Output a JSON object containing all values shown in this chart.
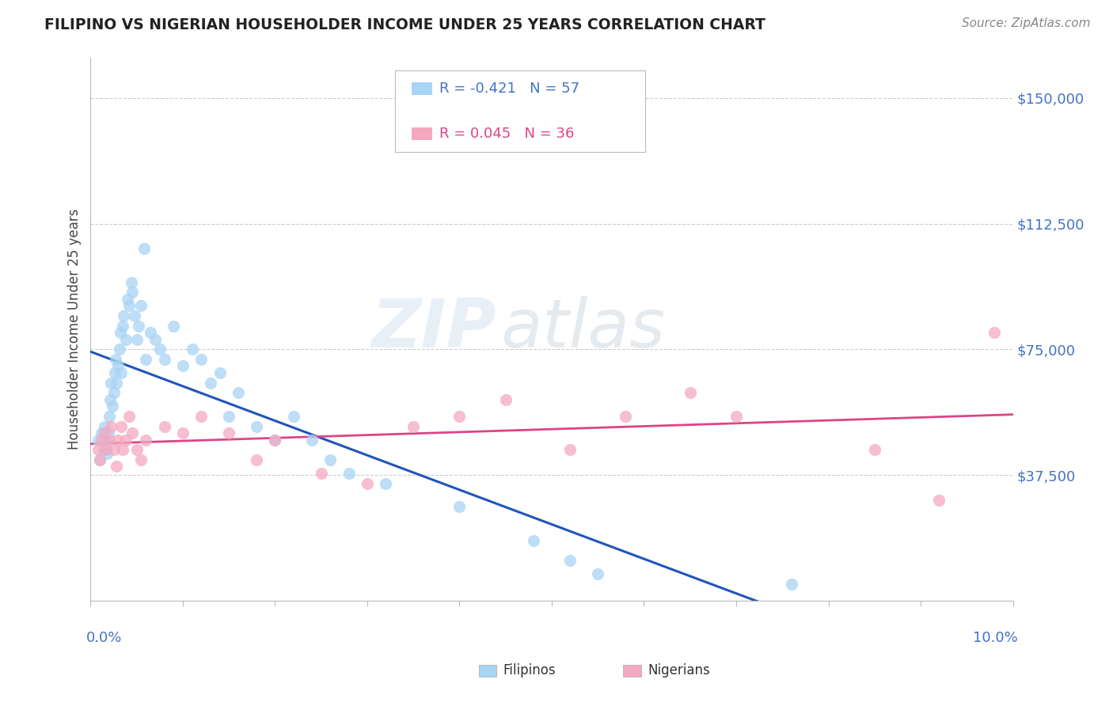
{
  "title": "FILIPINO VS NIGERIAN HOUSEHOLDER INCOME UNDER 25 YEARS CORRELATION CHART",
  "source": "Source: ZipAtlas.com",
  "ylabel": "Householder Income Under 25 years",
  "xlim": [
    0.0,
    10.0
  ],
  "ylim": [
    0,
    162000
  ],
  "yticks": [
    0,
    37500,
    75000,
    112500,
    150000
  ],
  "ytick_labels": [
    "",
    "$37,500",
    "$75,000",
    "$112,500",
    "$150,000"
  ],
  "xticks": [
    0.0,
    1.0,
    2.0,
    3.0,
    4.0,
    5.0,
    6.0,
    7.0,
    8.0,
    9.0,
    10.0
  ],
  "filipino_color": "#A8D4F5",
  "nigerian_color": "#F5A8C0",
  "filipino_line_color": "#2255BB",
  "nigerian_line_color": "#DD4488",
  "watermark_zip": "ZIP",
  "watermark_atlas": "atlas",
  "filipino_x": [
    0.08,
    0.1,
    0.12,
    0.14,
    0.15,
    0.17,
    0.18,
    0.19,
    0.2,
    0.21,
    0.22,
    0.24,
    0.25,
    0.26,
    0.27,
    0.28,
    0.3,
    0.31,
    0.32,
    0.33,
    0.35,
    0.36,
    0.38,
    0.4,
    0.42,
    0.44,
    0.45,
    0.48,
    0.5,
    0.52,
    0.55,
    0.58,
    0.6,
    0.65,
    0.7,
    0.75,
    0.8,
    0.9,
    1.0,
    1.1,
    1.2,
    1.3,
    1.4,
    1.5,
    1.6,
    1.8,
    2.0,
    2.2,
    2.4,
    2.6,
    2.8,
    3.2,
    4.0,
    4.8,
    5.2,
    5.5,
    7.6
  ],
  "filipino_y": [
    48000,
    42000,
    50000,
    45000,
    52000,
    48000,
    44000,
    50000,
    55000,
    60000,
    65000,
    58000,
    62000,
    68000,
    72000,
    65000,
    70000,
    75000,
    80000,
    68000,
    82000,
    85000,
    78000,
    90000,
    88000,
    95000,
    92000,
    85000,
    78000,
    82000,
    88000,
    105000,
    72000,
    80000,
    78000,
    75000,
    72000,
    82000,
    70000,
    75000,
    72000,
    65000,
    68000,
    55000,
    62000,
    52000,
    48000,
    55000,
    48000,
    42000,
    38000,
    35000,
    28000,
    18000,
    12000,
    8000,
    5000
  ],
  "nigerian_x": [
    0.08,
    0.1,
    0.12,
    0.15,
    0.17,
    0.2,
    0.22,
    0.25,
    0.28,
    0.3,
    0.33,
    0.35,
    0.38,
    0.42,
    0.45,
    0.5,
    0.55,
    0.6,
    0.8,
    1.0,
    1.2,
    1.5,
    1.8,
    2.0,
    2.5,
    3.0,
    3.5,
    4.0,
    4.5,
    5.2,
    5.8,
    6.5,
    7.0,
    8.5,
    9.2,
    9.8
  ],
  "nigerian_y": [
    45000,
    42000,
    48000,
    50000,
    45000,
    48000,
    52000,
    45000,
    40000,
    48000,
    52000,
    45000,
    48000,
    55000,
    50000,
    45000,
    42000,
    48000,
    52000,
    50000,
    55000,
    50000,
    42000,
    48000,
    38000,
    35000,
    52000,
    55000,
    60000,
    45000,
    55000,
    62000,
    55000,
    45000,
    30000,
    80000
  ]
}
